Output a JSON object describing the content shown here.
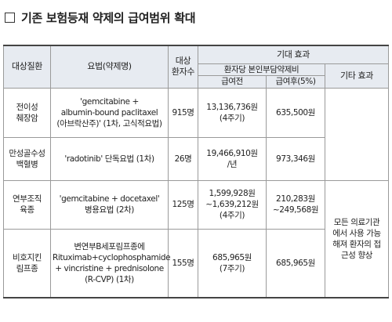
{
  "title": "기존 보험등재 약제의 급여범위 확대",
  "header": {
    "disease": "대상질환",
    "regimen": "요법(약제명)",
    "patients": "대상\n환자수",
    "effect": "기대 효과",
    "cost": "환자당 본인부담약제비",
    "before": "급여전",
    "after": "급여후(5%)",
    "other": "기타 효과"
  },
  "rows": [
    {
      "disease": [
        "전이성",
        "췌장암"
      ],
      "regimen": [
        "'gemcitabine +",
        "albumin-bound paclitaxel",
        "(아브락산주)' (1차, 고식적요법)"
      ],
      "patients": "915명",
      "before": [
        "13,136,736원",
        "(4주기)"
      ],
      "after": [
        "635,500원"
      ]
    },
    {
      "disease": [
        "만성골수성",
        "백혈병"
      ],
      "regimen": [
        "'radotinib' 단독요법 (1차)"
      ],
      "patients": "26명",
      "before": [
        "19,466,910원",
        "/년"
      ],
      "after": [
        "973,346원"
      ]
    },
    {
      "disease": [
        "연부조직",
        "육종"
      ],
      "regimen": [
        "'gemcitabine + docetaxel'",
        "병용요법 (2차)"
      ],
      "patients": "125명",
      "before": [
        "1,599,928원",
        "~1,639,212원",
        "(4주기)"
      ],
      "after": [
        "210,283원",
        "~249,568원"
      ]
    },
    {
      "disease": [
        "비호지킨",
        "림프종"
      ],
      "regimen": [
        "변연부B세포림프종에",
        "Rituximab+cyclophosphamide",
        "+ vincristine + prednisolone",
        "(R-CVP) (1차)"
      ],
      "patients": "155명",
      "before": [
        "685,965원",
        "(7주기)"
      ],
      "after": [
        "685,965원"
      ]
    }
  ],
  "other_effect": [
    "모든 의료기관",
    "에서 사용 가능",
    "해져 환자의 접",
    "근성 향상"
  ]
}
